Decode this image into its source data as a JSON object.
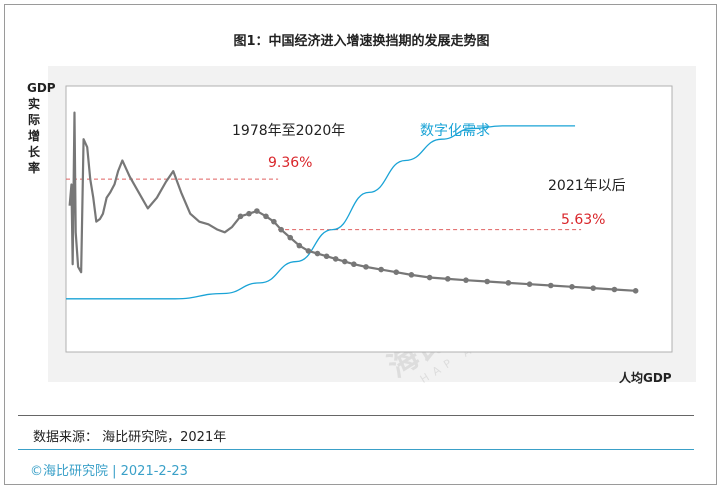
{
  "title": "图1：中国经济进入增速换挡期的发展走势图",
  "y_axis_label": "GDP实际增长率",
  "x_axis_label": "人均GDP",
  "annotations": {
    "period1": "1978年至2020年",
    "period1_value": "9.36%",
    "period2": "2021年以后",
    "period2_value": "5.63%",
    "digital": "数字化需求"
  },
  "source": "数据来源： 海比研究院，2021年",
  "footer": "©海比研究院 | 2021-2-23",
  "watermark": {
    "name": "海比研究院",
    "en": "HAP ACADEMY"
  },
  "colors": {
    "growth_line": "#777777",
    "digital_line": "#1aa3d6",
    "reference_line": "#e06060",
    "accent_text": "#d9262b"
  },
  "chart_data": {
    "type": "line",
    "title": "图1：中国经济进入增速换挡期的发展走势图",
    "xlabel": "人均GDP",
    "ylabel": "GDP实际增长率",
    "xlim": [
      0,
      100
    ],
    "ylim": [
      0,
      100
    ],
    "grid": false,
    "series": [
      {
        "name": "",
        "points": [
          [
            0.6,
            55
          ],
          [
            0.9,
            63
          ],
          [
            1.1,
            33
          ],
          [
            1.4,
            90
          ],
          [
            1.6,
            45
          ],
          [
            2.0,
            32
          ],
          [
            2.5,
            30
          ],
          [
            2.9,
            80
          ],
          [
            3.5,
            77
          ],
          [
            4.0,
            65
          ],
          [
            4.5,
            58
          ],
          [
            5.0,
            49
          ],
          [
            5.6,
            50
          ],
          [
            6.1,
            52
          ],
          [
            6.7,
            58
          ],
          [
            7.3,
            60
          ],
          [
            8.0,
            63
          ],
          [
            8.6,
            68
          ],
          [
            9.3,
            72
          ],
          [
            10.5,
            66
          ],
          [
            12.0,
            60
          ],
          [
            13.5,
            54
          ],
          [
            15.0,
            58
          ],
          [
            16.5,
            64
          ],
          [
            17.7,
            68
          ],
          [
            19.0,
            60
          ],
          [
            20.5,
            52
          ],
          [
            22.0,
            49
          ],
          [
            23.5,
            48
          ],
          [
            25.0,
            46
          ],
          [
            26.2,
            45
          ],
          [
            27.4,
            47
          ],
          [
            28.8,
            51
          ],
          [
            30.2,
            52
          ],
          [
            31.5,
            53
          ],
          [
            33.0,
            51
          ],
          [
            34.3,
            49
          ],
          [
            35.5,
            46
          ],
          [
            37.0,
            43
          ],
          [
            38.5,
            40
          ],
          [
            40.0,
            38
          ],
          [
            41.5,
            37
          ],
          [
            43.0,
            36
          ],
          [
            44.5,
            35
          ],
          [
            46.0,
            34
          ],
          [
            47.5,
            33
          ],
          [
            49.5,
            32
          ],
          [
            52.0,
            31
          ],
          [
            54.5,
            30
          ],
          [
            57.0,
            29
          ],
          [
            60.0,
            28
          ],
          [
            63.0,
            27.5
          ],
          [
            66.0,
            27
          ],
          [
            69.5,
            26.5
          ],
          [
            73.0,
            26
          ],
          [
            76.5,
            25.5
          ],
          [
            80.0,
            25
          ],
          [
            83.5,
            24.5
          ],
          [
            87.0,
            24
          ],
          [
            90.5,
            23.5
          ],
          [
            94.0,
            23
          ]
        ]
      },
      {
        "name": "数字化需求",
        "points": [
          [
            0,
            20
          ],
          [
            18,
            20
          ],
          [
            26,
            22
          ],
          [
            32,
            26
          ],
          [
            38,
            34
          ],
          [
            44,
            46
          ],
          [
            50,
            60
          ],
          [
            56,
            72
          ],
          [
            62,
            80
          ],
          [
            67,
            84
          ],
          [
            72,
            85
          ],
          [
            78,
            85
          ],
          [
            84,
            85
          ]
        ]
      }
    ],
    "reference_lines": [
      {
        "label": "9.36%",
        "y": 65,
        "x_range": [
          0,
          35
        ]
      },
      {
        "label": "5.63%",
        "y": 46,
        "x_range": [
          35,
          85
        ]
      }
    ]
  }
}
